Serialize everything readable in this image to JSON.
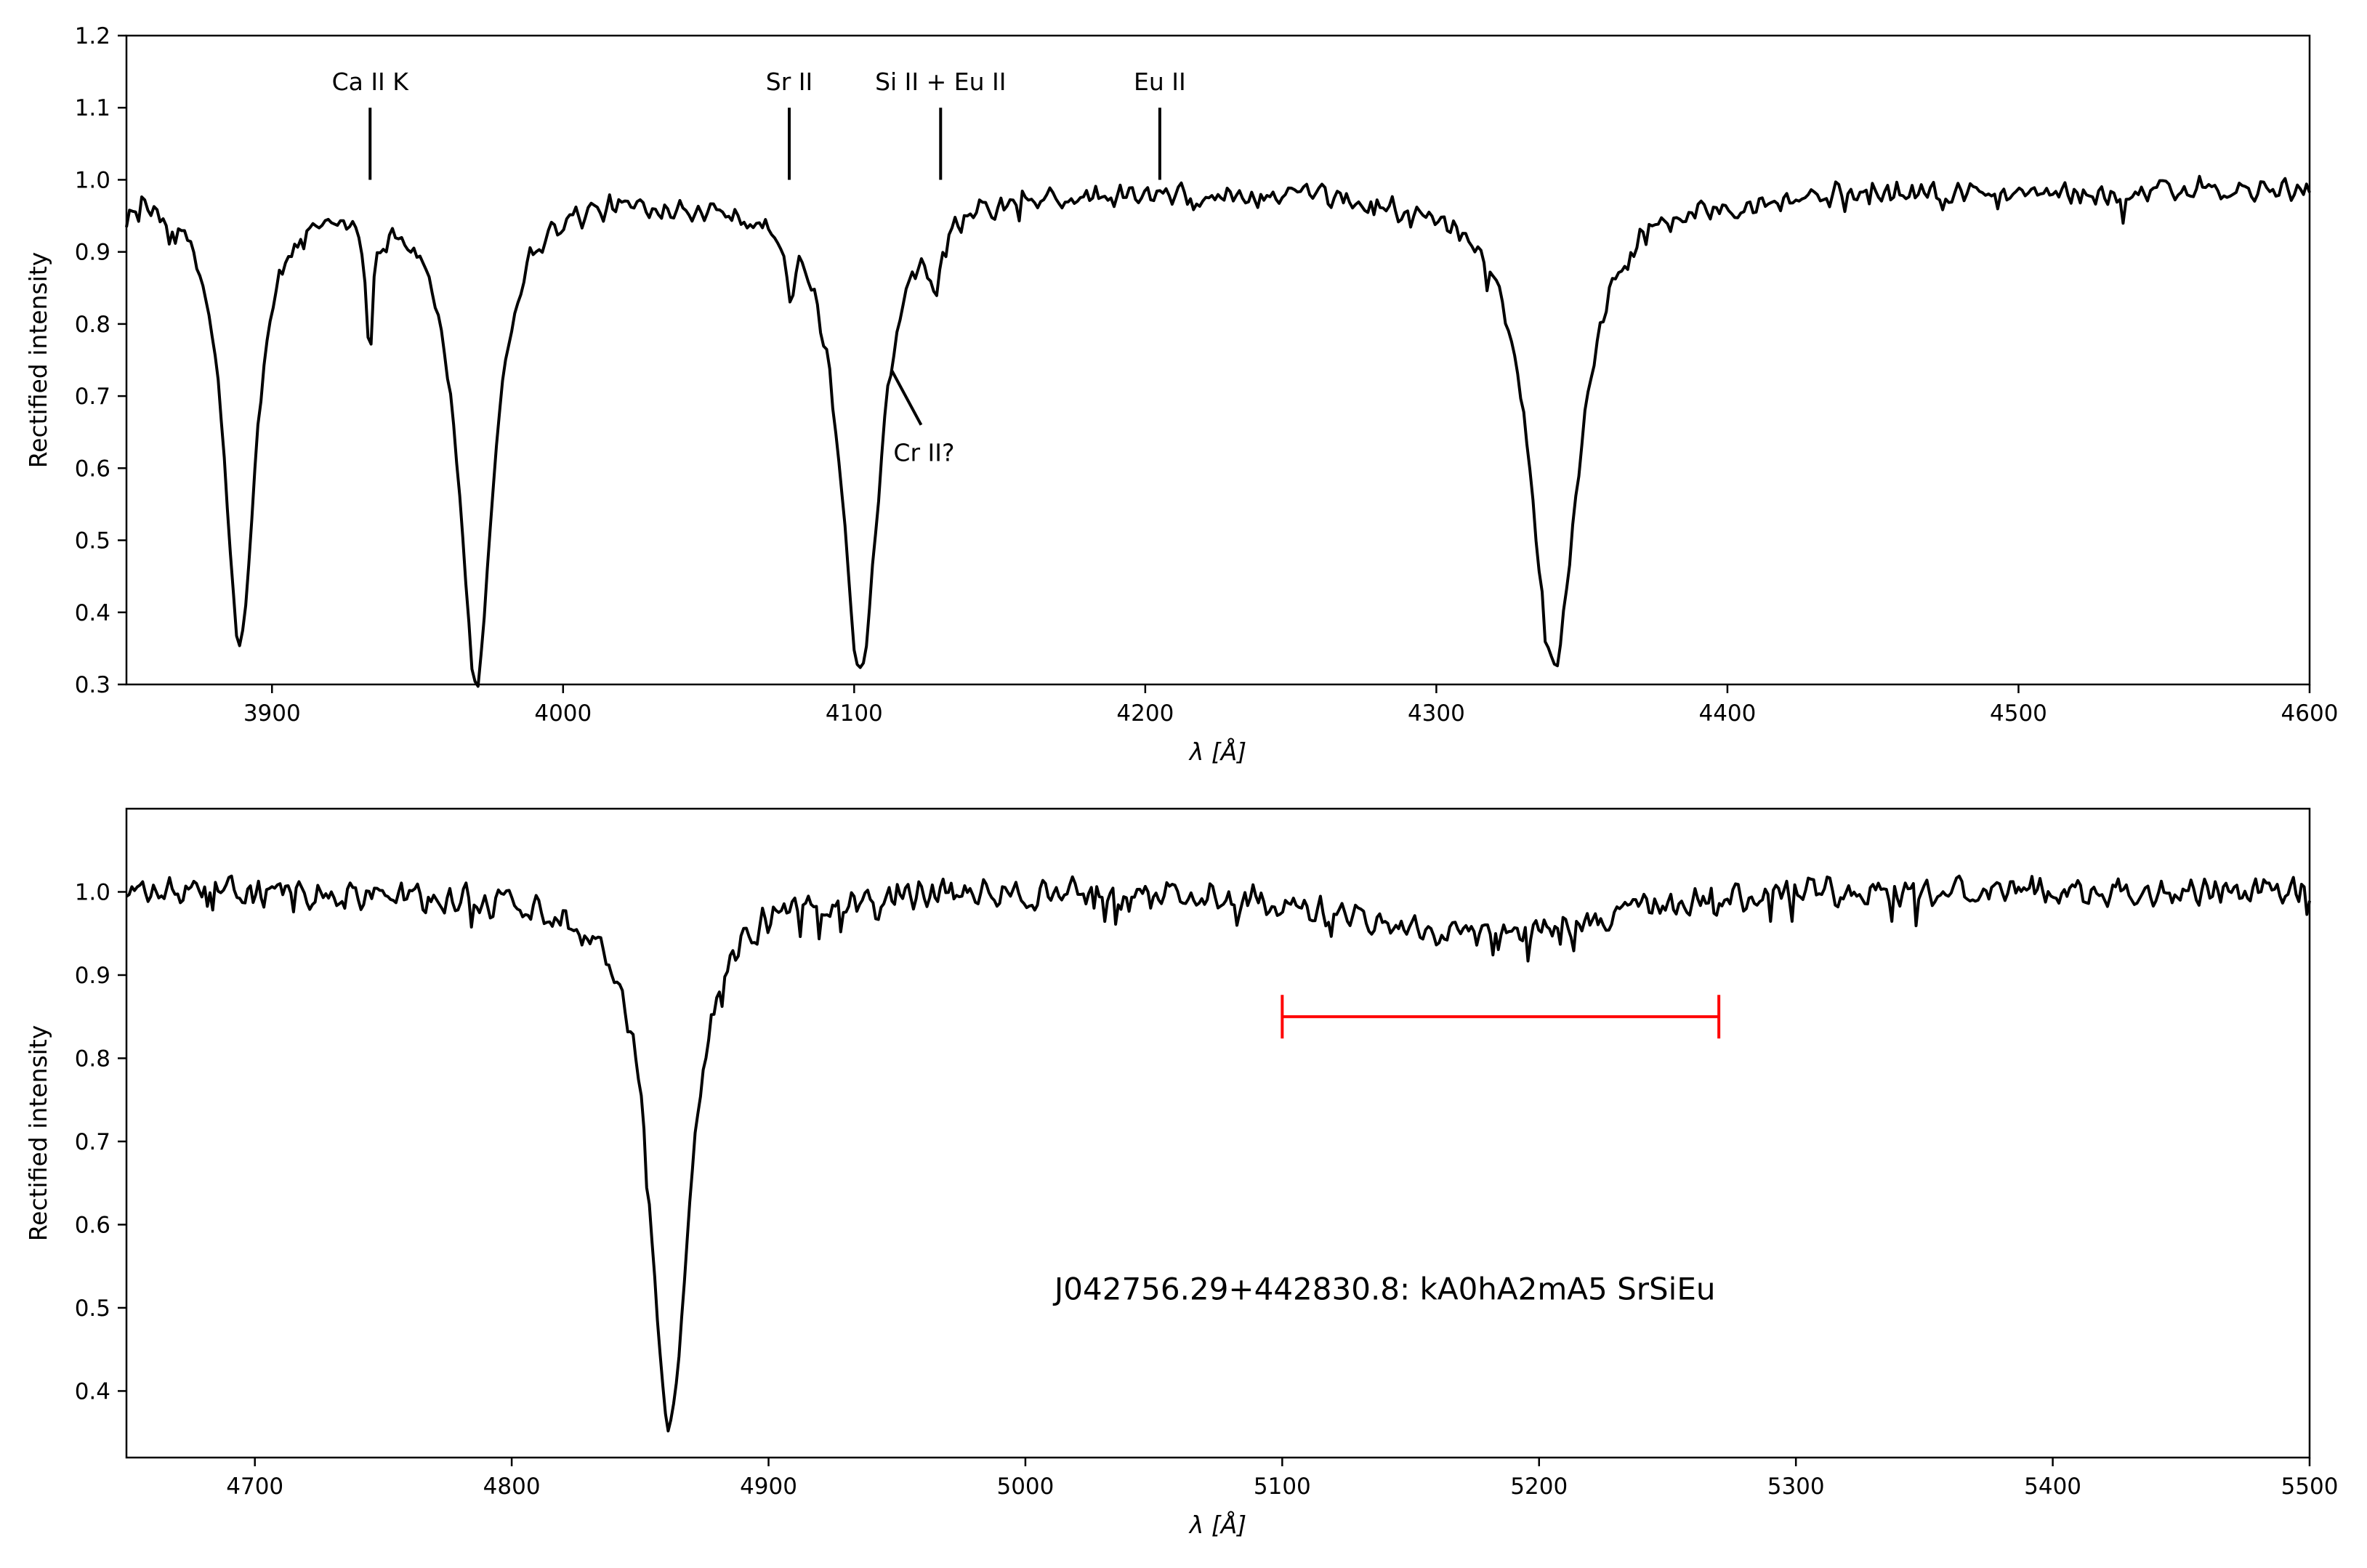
{
  "chart_data": [
    {
      "type": "line",
      "xlabel": "λ [Å]",
      "ylabel": "Rectified intensity",
      "xlim": [
        3850,
        4600
      ],
      "ylim": [
        0.3,
        1.2
      ],
      "xticks": [
        3900,
        4000,
        4100,
        4200,
        4300,
        4400,
        4500,
        4600
      ],
      "yticks": [
        0.3,
        0.4,
        0.5,
        0.6,
        0.7,
        0.8,
        0.9,
        1.0,
        1.1,
        1.2
      ],
      "grid": false,
      "line_color": "#000000",
      "continuum": 0.985,
      "noise_amplitude": 0.022,
      "absorption_lines": [
        {
          "center": 3889,
          "depth": 0.63,
          "width": 7
        },
        {
          "center": 3933.7,
          "depth": 0.18,
          "width": 1.6
        },
        {
          "center": 3970,
          "depth": 0.67,
          "width": 8
        },
        {
          "center": 4077.7,
          "depth": 0.08,
          "width": 1.8
        },
        {
          "center": 4102,
          "depth": 0.67,
          "width": 9
        },
        {
          "center": 4128,
          "depth": 0.1,
          "width": 2
        },
        {
          "center": 4340.5,
          "depth": 0.65,
          "width": 11
        }
      ],
      "annotations": [
        {
          "label": "Ca II K",
          "x": 3933.7,
          "y_bottom": 1.0,
          "y_top": 1.1
        },
        {
          "label": "Sr II",
          "x": 4077.7,
          "y_bottom": 1.0,
          "y_top": 1.1
        },
        {
          "label": "Si II + Eu II",
          "x": 4129.7,
          "y_bottom": 1.0,
          "y_top": 1.1
        },
        {
          "label": "Eu II",
          "x": 4205,
          "y_bottom": 1.0,
          "y_top": 1.1
        }
      ],
      "pointer_annotation": {
        "label": "Cr II?",
        "x1": 4113,
        "y1": 0.735,
        "x2": 4123,
        "y2": 0.66,
        "label_x": 4124,
        "label_y": 0.61
      }
    },
    {
      "type": "line",
      "xlabel": "λ [Å]",
      "ylabel": "Rectified intensity",
      "xlim": [
        4650,
        5500
      ],
      "ylim": [
        0.32,
        1.1
      ],
      "xticks": [
        4700,
        4800,
        4900,
        5000,
        5100,
        5200,
        5300,
        5400,
        5500
      ],
      "yticks": [
        0.4,
        0.5,
        0.6,
        0.7,
        0.8,
        0.9,
        1.0
      ],
      "grid": false,
      "line_color": "#000000",
      "continuum": 1.0,
      "noise_amplitude": 0.022,
      "absorption_lines": [
        {
          "center": 4861.5,
          "depth": 0.64,
          "width": 10
        }
      ],
      "broad_depression": {
        "center": 5180,
        "depth": 0.05,
        "width": 70
      },
      "text_annotation": {
        "label": "J042756.29+442830.8: kA0hA2mA5 SrSiEu",
        "x": 5140,
        "y": 0.51
      },
      "range_bar": {
        "x_start": 5100,
        "x_end": 5270,
        "y": 0.85,
        "color": "#ff0000"
      }
    }
  ]
}
